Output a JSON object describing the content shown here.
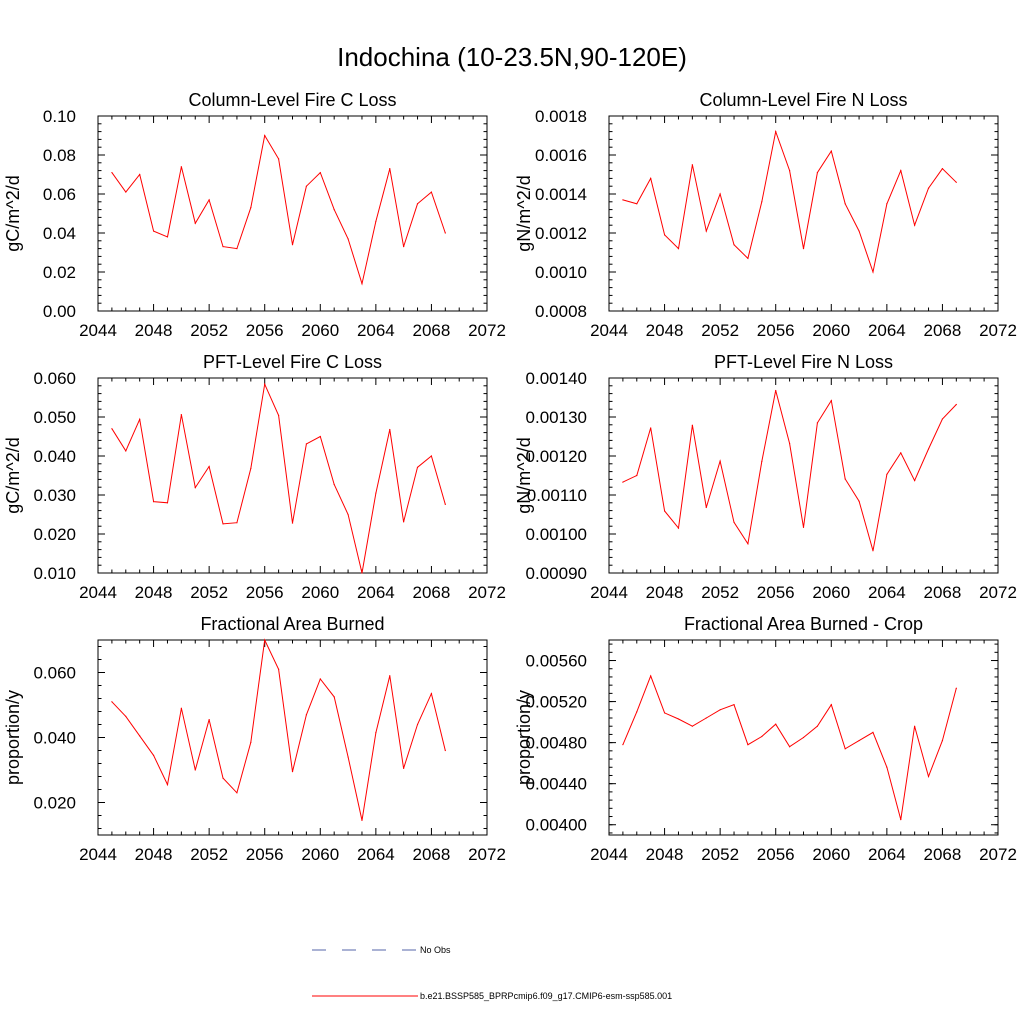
{
  "figure": {
    "title": "Indochina (10-23.5N,90-120E)",
    "line_color": "#ff0000",
    "obs_line_color": "#5566aa",
    "legend": {
      "obs_label": "No Obs",
      "model_label": "b.e21.BSSP585_BPRPcmip6.f09_g17.CMIP6-esm-ssp585.001"
    }
  },
  "chart_data": [
    {
      "type": "line",
      "title": "Column-Level Fire C Loss",
      "ylabel": "gC/m^2/d",
      "xlim": [
        2044,
        2072
      ],
      "xticks": [
        "2044",
        "2048",
        "2052",
        "2056",
        "2060",
        "2064",
        "2068",
        "2072"
      ],
      "ylim": [
        0.0,
        0.1
      ],
      "yticks": [
        "0.00",
        "0.02",
        "0.04",
        "0.06",
        "0.08",
        "0.10"
      ],
      "series": [
        {
          "x": [
            2045,
            2046,
            2047,
            2048,
            2049,
            2050,
            2051,
            2052,
            2053,
            2054,
            2055,
            2056,
            2057,
            2058,
            2059,
            2060,
            2061,
            2062,
            2063,
            2064,
            2065,
            2066,
            2067,
            2068,
            2069
          ],
          "values": [
            0.071,
            0.061,
            0.07,
            0.041,
            0.038,
            0.074,
            0.045,
            0.057,
            0.033,
            0.032,
            0.053,
            0.09,
            0.078,
            0.034,
            0.064,
            0.071,
            0.052,
            0.037,
            0.014,
            0.046,
            0.073,
            0.033,
            0.055,
            0.061,
            0.04
          ]
        }
      ]
    },
    {
      "type": "line",
      "title": "Column-Level Fire N Loss",
      "ylabel": "gN/m^2/d",
      "xlim": [
        2044,
        2072
      ],
      "xticks": [
        "2044",
        "2048",
        "2052",
        "2056",
        "2060",
        "2064",
        "2068",
        "2072"
      ],
      "ylim": [
        0.0008,
        0.0018
      ],
      "yticks": [
        "0.0008",
        "0.0010",
        "0.0012",
        "0.0014",
        "0.0016",
        "0.0018"
      ],
      "series": [
        {
          "x": [
            2045,
            2046,
            2047,
            2048,
            2049,
            2050,
            2051,
            2052,
            2053,
            2054,
            2055,
            2056,
            2057,
            2058,
            2059,
            2060,
            2061,
            2062,
            2063,
            2064,
            2065,
            2066,
            2067,
            2068,
            2069
          ],
          "values": [
            0.00137,
            0.00135,
            0.00148,
            0.00119,
            0.00112,
            0.00155,
            0.00121,
            0.0014,
            0.00114,
            0.00107,
            0.00136,
            0.00172,
            0.00152,
            0.00112,
            0.00151,
            0.00162,
            0.00135,
            0.00121,
            0.001,
            0.00135,
            0.00152,
            0.00124,
            0.00143,
            0.00153,
            0.00146
          ]
        }
      ]
    },
    {
      "type": "line",
      "title": "PFT-Level Fire C Loss",
      "ylabel": "gC/m^2/d",
      "xlim": [
        2044,
        2072
      ],
      "xticks": [
        "2044",
        "2048",
        "2052",
        "2056",
        "2060",
        "2064",
        "2068",
        "2072"
      ],
      "ylim": [
        0.01,
        0.06
      ],
      "yticks": [
        "0.010",
        "0.020",
        "0.030",
        "0.040",
        "0.050",
        "0.060"
      ],
      "series": [
        {
          "x": [
            2045,
            2046,
            2047,
            2048,
            2049,
            2050,
            2051,
            2052,
            2053,
            2054,
            2055,
            2056,
            2057,
            2058,
            2059,
            2060,
            2061,
            2062,
            2063,
            2064,
            2065,
            2066,
            2067,
            2068,
            2069
          ],
          "values": [
            0.047,
            0.0413,
            0.0494,
            0.0283,
            0.028,
            0.0506,
            0.0319,
            0.0373,
            0.0226,
            0.0229,
            0.0368,
            0.0584,
            0.0504,
            0.0228,
            0.0431,
            0.045,
            0.0327,
            0.025,
            0.01,
            0.0305,
            0.0468,
            0.0231,
            0.0371,
            0.04,
            0.0276
          ]
        }
      ]
    },
    {
      "type": "line",
      "title": "PFT-Level Fire N Loss",
      "ylabel": "gN/m^2/d",
      "xlim": [
        2044,
        2072
      ],
      "xticks": [
        "2044",
        "2048",
        "2052",
        "2056",
        "2060",
        "2064",
        "2068",
        "2072"
      ],
      "ylim": [
        0.0009,
        0.0014
      ],
      "yticks": [
        "0.00090",
        "0.00100",
        "0.00110",
        "0.00120",
        "0.00130",
        "0.00140"
      ],
      "series": [
        {
          "x": [
            2045,
            2046,
            2047,
            2048,
            2049,
            2050,
            2051,
            2052,
            2053,
            2054,
            2055,
            2056,
            2057,
            2058,
            2059,
            2060,
            2061,
            2062,
            2063,
            2064,
            2065,
            2066,
            2067,
            2068,
            2069
          ],
          "values": [
            0.001133,
            0.00115,
            0.001272,
            0.001059,
            0.001015,
            0.001279,
            0.001068,
            0.001187,
            0.00103,
            0.000975,
            0.001186,
            0.001368,
            0.001232,
            0.001017,
            0.001285,
            0.001342,
            0.001141,
            0.001084,
            0.000957,
            0.001153,
            0.001208,
            0.001137,
            0.001218,
            0.001295,
            0.001332
          ]
        }
      ]
    },
    {
      "type": "line",
      "title": "Fractional Area Burned",
      "ylabel": "proportion/y",
      "xlim": [
        2044,
        2072
      ],
      "xticks": [
        "2044",
        "2048",
        "2052",
        "2056",
        "2060",
        "2064",
        "2068",
        "2072"
      ],
      "ylim": [
        0.01,
        0.07
      ],
      "yticks": [
        "0.020",
        "0.040",
        "0.060"
      ],
      "ytick_values": [
        0.02,
        0.04,
        0.06
      ],
      "series": [
        {
          "x": [
            2045,
            2046,
            2047,
            2048,
            2049,
            2050,
            2051,
            2052,
            2053,
            2054,
            2055,
            2056,
            2057,
            2058,
            2059,
            2060,
            2061,
            2062,
            2063,
            2064,
            2065,
            2066,
            2067,
            2068,
            2069
          ],
          "values": [
            0.051,
            0.0465,
            0.0405,
            0.0345,
            0.0255,
            0.049,
            0.03,
            0.0455,
            0.0275,
            0.023,
            0.0385,
            0.07,
            0.061,
            0.0295,
            0.047,
            0.058,
            0.0525,
            0.034,
            0.0145,
            0.0415,
            0.059,
            0.0305,
            0.044,
            0.0535,
            0.036
          ]
        }
      ]
    },
    {
      "type": "line",
      "title": "Fractional Area Burned - Crop",
      "ylabel": "proportion/y",
      "xlim": [
        2044,
        2072
      ],
      "xticks": [
        "2044",
        "2048",
        "2052",
        "2056",
        "2060",
        "2064",
        "2068",
        "2072"
      ],
      "ylim": [
        0.0039,
        0.0058
      ],
      "yticks": [
        "0.00400",
        "0.00440",
        "0.00480",
        "0.00520",
        "0.00560"
      ],
      "ytick_values": [
        0.004,
        0.0044,
        0.0048,
        0.0052,
        0.0056
      ],
      "series": [
        {
          "x": [
            2045,
            2046,
            2047,
            2048,
            2049,
            2050,
            2051,
            2052,
            2053,
            2054,
            2055,
            2056,
            2057,
            2058,
            2059,
            2060,
            2061,
            2062,
            2063,
            2064,
            2065,
            2066,
            2067,
            2068,
            2069
          ],
          "values": [
            0.00478,
            0.0051,
            0.00545,
            0.00509,
            0.00503,
            0.00496,
            0.00504,
            0.00512,
            0.00517,
            0.00478,
            0.00486,
            0.00498,
            0.00476,
            0.00485,
            0.00496,
            0.00517,
            0.00474,
            0.00482,
            0.0049,
            0.00456,
            0.00405,
            0.00496,
            0.00447,
            0.00482,
            0.00533
          ]
        }
      ]
    }
  ]
}
